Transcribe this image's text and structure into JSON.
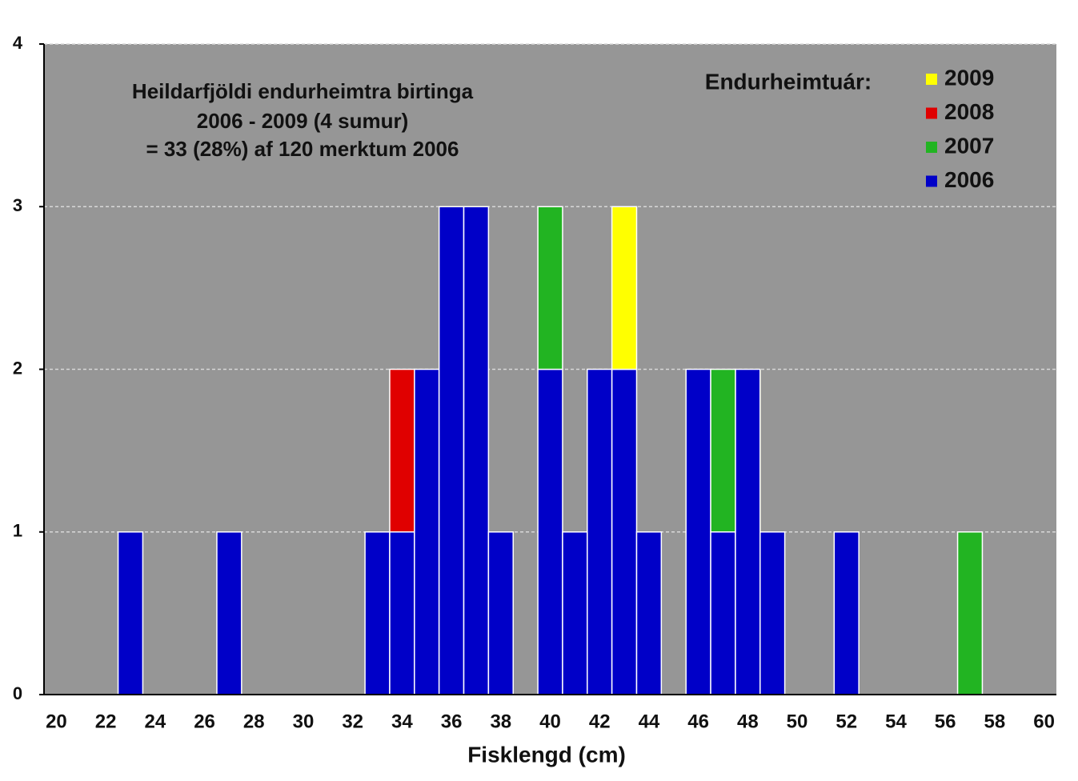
{
  "chart_data": {
    "type": "bar",
    "stacked": true,
    "annotation": [
      "Heildarfjöldi endurheimtra birtinga",
      "2006 - 2009 (4 sumur)",
      "= 33 (28%) af 120 merktum 2006"
    ],
    "legend_title": "Endurheimtuár:",
    "x_label": "Fisklengd (cm)",
    "categories": [
      20,
      null,
      22,
      null,
      24,
      null,
      26,
      null,
      28,
      null,
      30,
      null,
      32,
      null,
      34,
      null,
      36,
      null,
      38,
      null,
      40,
      null,
      42,
      null,
      44,
      null,
      46,
      null,
      48,
      null,
      50,
      null,
      52,
      null,
      54,
      null,
      56,
      null,
      58,
      null,
      60
    ],
    "series": [
      {
        "name": "2006",
        "color": "#0000c8",
        "values": [
          0,
          0,
          0,
          1,
          0,
          0,
          0,
          1,
          0,
          0,
          0,
          0,
          0,
          1,
          1,
          2,
          3,
          3,
          1,
          0,
          2,
          1,
          2,
          2,
          1,
          0,
          2,
          1,
          2,
          1,
          0,
          0,
          1,
          0,
          0,
          0,
          0,
          0,
          0,
          0,
          0
        ]
      },
      {
        "name": "2007",
        "color": "#22b422",
        "values": [
          0,
          0,
          0,
          0,
          0,
          0,
          0,
          0,
          0,
          0,
          0,
          0,
          0,
          0,
          0,
          0,
          0,
          0,
          0,
          0,
          1,
          0,
          0,
          0,
          0,
          0,
          0,
          1,
          0,
          0,
          0,
          0,
          0,
          0,
          0,
          0,
          0,
          1,
          0,
          0,
          0
        ]
      },
      {
        "name": "2008",
        "color": "#e00000",
        "values": [
          0,
          0,
          0,
          0,
          0,
          0,
          0,
          0,
          0,
          0,
          0,
          0,
          0,
          0,
          1,
          0,
          0,
          0,
          0,
          0,
          0,
          0,
          0,
          0,
          0,
          0,
          0,
          0,
          0,
          0,
          0,
          0,
          0,
          0,
          0,
          0,
          0,
          0,
          0,
          0,
          0
        ]
      },
      {
        "name": "2009",
        "color": "#ffff00",
        "values": [
          0,
          0,
          0,
          0,
          0,
          0,
          0,
          0,
          0,
          0,
          0,
          0,
          0,
          0,
          0,
          0,
          0,
          0,
          0,
          0,
          0,
          0,
          0,
          1,
          0,
          0,
          0,
          0,
          0,
          0,
          0,
          0,
          0,
          0,
          0,
          0,
          0,
          0,
          0,
          0,
          0
        ]
      }
    ],
    "ylim": [
      0,
      4
    ],
    "yticks": [
      0,
      1,
      2,
      3,
      4
    ],
    "grid": true
  }
}
